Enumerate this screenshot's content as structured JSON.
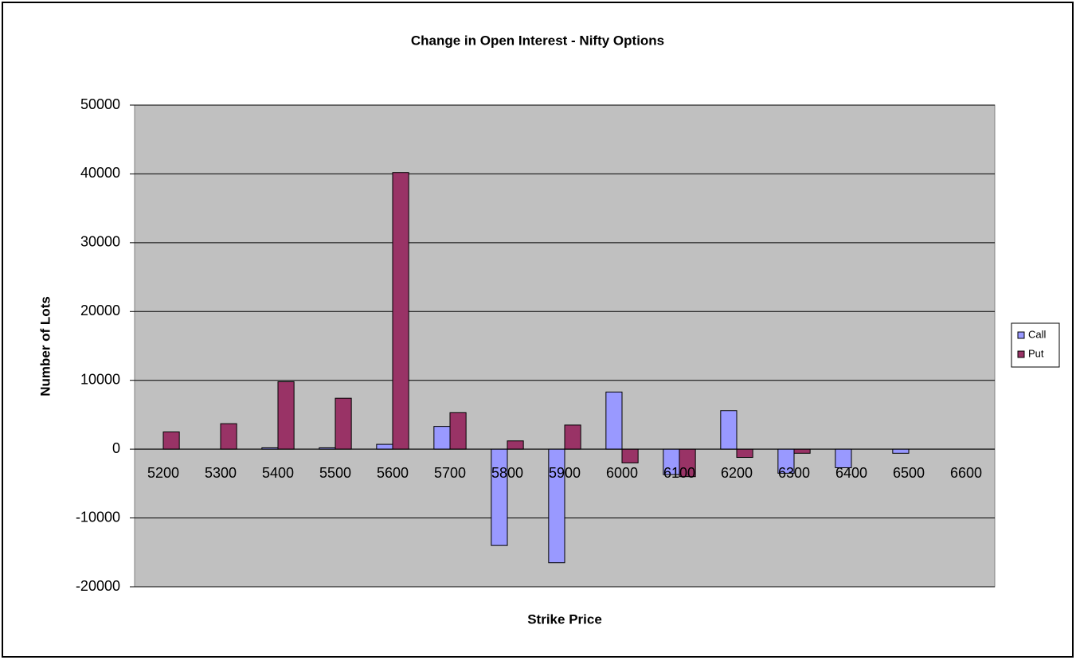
{
  "chart_data": {
    "type": "bar",
    "title": "Change in Open Interest - Nifty Options",
    "x_label": "Strike Price",
    "y_label": "Number of Lots",
    "categories": [
      "5200",
      "5300",
      "5400",
      "5500",
      "5600",
      "5700",
      "5800",
      "5900",
      "6000",
      "6100",
      "6200",
      "6300",
      "6400",
      "6500",
      "6600"
    ],
    "series": [
      {
        "name": "Call",
        "color": "#9999ff",
        "values": [
          0,
          0,
          200,
          200,
          700,
          3300,
          -14000,
          -16500,
          8300,
          -3700,
          5600,
          -3500,
          -2700,
          -600,
          0
        ]
      },
      {
        "name": "Put",
        "color": "#993366",
        "values": [
          2500,
          3700,
          9800,
          7400,
          40200,
          5300,
          1200,
          3500,
          -2000,
          -4000,
          -1200,
          -600,
          0,
          0,
          0
        ]
      }
    ],
    "ylim": [
      -20000,
      50000
    ],
    "yticks": [
      -20000,
      -10000,
      0,
      10000,
      20000,
      30000,
      40000,
      50000
    ],
    "grid": true,
    "legend": "right",
    "plot_background": "#c0c0c0"
  }
}
